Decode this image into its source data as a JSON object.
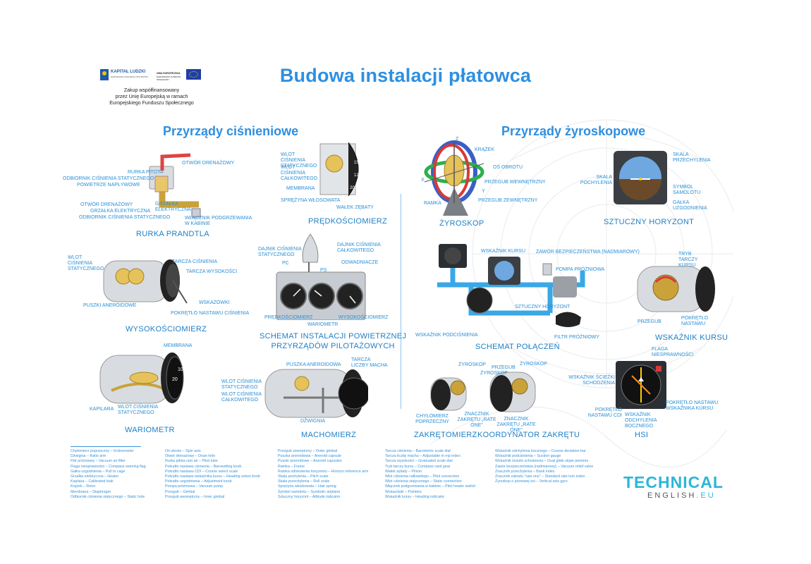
{
  "title": "Budowa instalacji płatowca",
  "eu_notice": {
    "logo1": "KAPITAŁ LUDZKI",
    "logo1_sub": "NARODOWA STRATEGIA SPÓJNOŚCI",
    "logo2": "UNIA EUROPEJSKA",
    "logo2_sub": "EUROPEJSKI FUNDUSZ SPOŁECZNY",
    "line1": "Zakup współfinansowany",
    "line2": "przez Unię Europejską w ramach",
    "line3": "Europejskiego Funduszu Społecznego"
  },
  "sections": {
    "pressure": "Przyrządy ciśnieniowe",
    "gyro": "Przyrządy żyroskopowe"
  },
  "instruments": {
    "prandtl": "RURKA PRANDTLA",
    "altimeter": "WYSOKOŚCIOMIERZ",
    "variometer": "WARIOMETR",
    "airspeed": "PRĘDKOŚCIOMIERZ",
    "schema_line1": "SCHEMAT INSTALACJI POWIETRZNEJ",
    "schema_line2": "PRZYRZĄDÓW PILOTAŻOWYCH",
    "machmeter": "MACHOMIERZ",
    "gyroscope": "ŻYROSKOP",
    "horizon": "SZTUCZNY HORYZONT",
    "connection": "SCHEMAT POŁĄCZEŃ",
    "heading": "WSKAŹNIK KURSU",
    "turn": "ZAKRĘTOMIERZ",
    "turn_coord": "KOORDYNATOR ZAKRĘTU",
    "hsi": "HSI"
  },
  "labels": {
    "otwor_drenazowy_1": "OTWÓR DRENAŻOWY",
    "rurka_pitota": "RURKA PITOTA",
    "odbiornik_stat_1": "ODBIORNIK CIŚNIENIA STATYCZNEGO",
    "powietrze": "POWIETRZE NAPŁYWOWE",
    "otwor_drenazowy_2": "OTWÓR DRENAŻOWY",
    "grzalka_el": "GRZAŁKA ELEKTRYCZNA",
    "odbiornik_stat_2": "ODBIORNIK CIŚNIENIA STATYCZNEGO",
    "grzalka_el_2": "GRZAŁKA ELEKTRYCZNA",
    "wlacznik": "WŁĄCZNIK PODGRZEWANIA W KABINIE",
    "wlot_stat_alt": "WLOT CIŚNIENIA STATYCZNEGO",
    "tarcza_cisnienia": "TARCZA CIŚNIENIA",
    "tarcza_wysokosci": "TARCZA WYSOKOŚCI",
    "puszki": "PUSZKI ANEROIDOWE",
    "wskazowki": "WSKAZÓWKI",
    "pokretlo_nast": "POKRĘTŁO NASTAWU CIŚNIENIA",
    "membrana_var": "MEMBRANA",
    "kapilara": "KAPILARA",
    "wlot_stat_var": "WLOT CIŚNIENIA STATYCZNEGO",
    "wlot_stat_asi": "WLOT CIŚNIENIA STATYCZNEGO",
    "wlot_calk_asi": "WLOT CIŚNIENIA CAŁKOWITEGO",
    "membrana_asi": "MEMBRANA",
    "sprezyna": "SPRĘŻYNA WŁOSOWATA",
    "walek": "WAŁEK ZĘBATY",
    "dajnik_stat": "DAJNIK CIŚNIENIA STATYCZNEGO",
    "dajnik_calk": "DAJNIK CIŚNIENIA CAŁKOWITEGO",
    "pc": "PC",
    "ps": "PS",
    "odwadniacze": "ODWADNIACZE",
    "predkosciomierz_s": "PRĘDKOŚCIOMIERZ",
    "wariometr_s": "WARIOMETR",
    "wysokosciomierz_s": "WYSOKOŚCIOMIERZ",
    "wlot_stat_mach": "WLOT CIŚNIENIA STATYCZNEGO",
    "wlot_calk_mach": "WLOT CIŚNIENIA CAŁKOWITEGO",
    "puszka_aner": "PUSZKA ANEROIDOWA",
    "tarcza_mach": "TARCZA LICZBY MACHA",
    "dzwignia": "DŹWIGNIA",
    "krazek": "KRĄŻEK",
    "os_obrotu": "OŚ OBROTU",
    "przegub_wewn": "PRZEGUB WEWNĘTRZNY",
    "przegub_zewn": "PRZEGUB ZEWNĘTRZNY",
    "ramka": "RAMKA",
    "z": "Z",
    "x": "X",
    "y": "Y",
    "skala_przechylenia": "SKALA PRZECHYLENIA",
    "skala_pochylenia": "SKALA POCHYLENIA",
    "symbol_samolotu": "SYMBOL SAMOLOTU",
    "galka": "GAŁKA UZGODNIENIA",
    "wskaznik_kursu_s": "WSKAŹNIK KURSU",
    "zawor": "ZAWÓR BEZPIECZEŃSTWA (NADMIAROWY)",
    "pompa": "POMPA PRÓŻNIOWA",
    "sztuczny_s": "SZTUCZNY HORYZONT",
    "wskaznik_podc": "WSKAŹNIK PODCIŚNIENIA",
    "filtr": "FILTR PRÓŻNIOWY",
    "tryb_tarczy": "TRYB TARCZY KURSU",
    "przegub_hi": "PRZEGUB",
    "pokretlo_hi": "POKRĘTŁO NASTAWU",
    "zyroskop_1": "ŻYROSKOP",
    "przegub_tc": "PRZEGUB",
    "zyroskop_2": "ŻYROSKOP",
    "zyroskop_3": "ŻYROSKOP",
    "chylomierz": "CHYŁOMIERZ POPRZECZNY",
    "znacznik_1": "ZNACZNIK ZAKRĘTU „RATE ONE\"",
    "znacznik_2": "ZNACZNIK ZAKRĘTU „RATE ONE\"",
    "flaga": "FLAGA NIESPRAWNOŚCI",
    "wskaznik_sciezki": "WSKAŹNIK ŚCIEŻKI SCHODZENIA",
    "pokretlo_cdi": "POKRĘTŁO NASTAWU CDI",
    "wskaznik_odch": "WSKAŹNIK ODCHYLENIA BOCZNEGO",
    "pokretlo_wsk": "POKRĘTŁO NASTAWU WSKAŹNIKA KURSU"
  },
  "glossary": {
    "col1": [
      "Chyłomierz poprzeczny – Inclinometer",
      "Dźwignia – Ratio arm",
      "Filtr próżniowy – Vacuum air filter",
      "Flaga niesprawności – Compass warning flag",
      "Gałka uzgodnienia – Pull to cage",
      "Grzałka elektryczna – Heater",
      "Kapilara – Calibrated leak",
      "Krążek – Rotor",
      "Membrana – Diaphragm",
      "Odbiornik ciśnienia statycznego – Static hole"
    ],
    "col2": [
      "Oś obrotu – Spin axis",
      "Otwór drenażowy – Drain hole",
      "Rurka pitota ram air – Pitot tube",
      "Pokrętło nastawu ciśnienia – Barosetting knob",
      "Pokrętło nastawu CDI – Course select scale",
      "Pokrętło nastawu wskaźnika kursu – Heading select knob",
      "Pokrętło uzgodnienia – Adjustment knob",
      "Pompa próżniowa – Vacuum pump",
      "Przegub – Gimbal",
      "Przegub wewnętrzny – Inner gimbal"
    ],
    "col3": [
      "Przegub zewnętrzny – Outer gimbal",
      "Puszka aneroidowa – Aneroid capsule",
      "Puszki aneroidowe – Aneroid capsules",
      "Ramka – Frame",
      "Ramka odniesienia horyzontu – Horizon reference arm",
      "Skala pochylenia – Pitch scale",
      "Skala przechylenia – Roll scale",
      "Sprężyna włoskowata – Hair spring",
      "Symbol samolotu – Symbolic airplane",
      "Sztuczny horyzont – Attitude indicator"
    ],
    "col4": [
      "Tarcza ciśnienia – Barometric scale dial",
      "Tarcza liczby macha – Adjustable m mp index",
      "Tarcza wysokości – Graduated scale dial",
      "Tryb tarczy kursu – Compass card gear",
      "Wałek zębaty – Pinion",
      "Wlot ciśnienia całkowitego – Pitot connection",
      "Wlot ciśnienia statycznego – Static connection",
      "Włącznik podgrzewania w kabinie – Pitot heater switch",
      "Wskazówki – Pointers",
      "Wskaźnik kursu – Heading indicator"
    ],
    "col5": [
      "Wskaźnik odchylenia bocznego – Course deviation bar",
      "Wskaźnik podciśnienia – Suction gauge",
      "Wskaźnik ścieżki schodzenia – Dual glide slope pointers",
      "Zawór bezpieczeństwa (nadmiarowy) – Vacuum relief valve",
      "Znacznik przechylenia – Bank index",
      "Znacznik zakrętu \"rate one\" – Standard rate turn index",
      "Żyroskop o pionowej osi – Vertical axis gyro"
    ]
  },
  "brand": {
    "name": "TECHNICAL",
    "sub": "ENGLISH",
    "tld": ".EU"
  },
  "colors": {
    "accent": "#2e8fe0",
    "pipe": "#3aa7e6",
    "gold": "#c9a23a",
    "brand": "#2cb6d8"
  }
}
